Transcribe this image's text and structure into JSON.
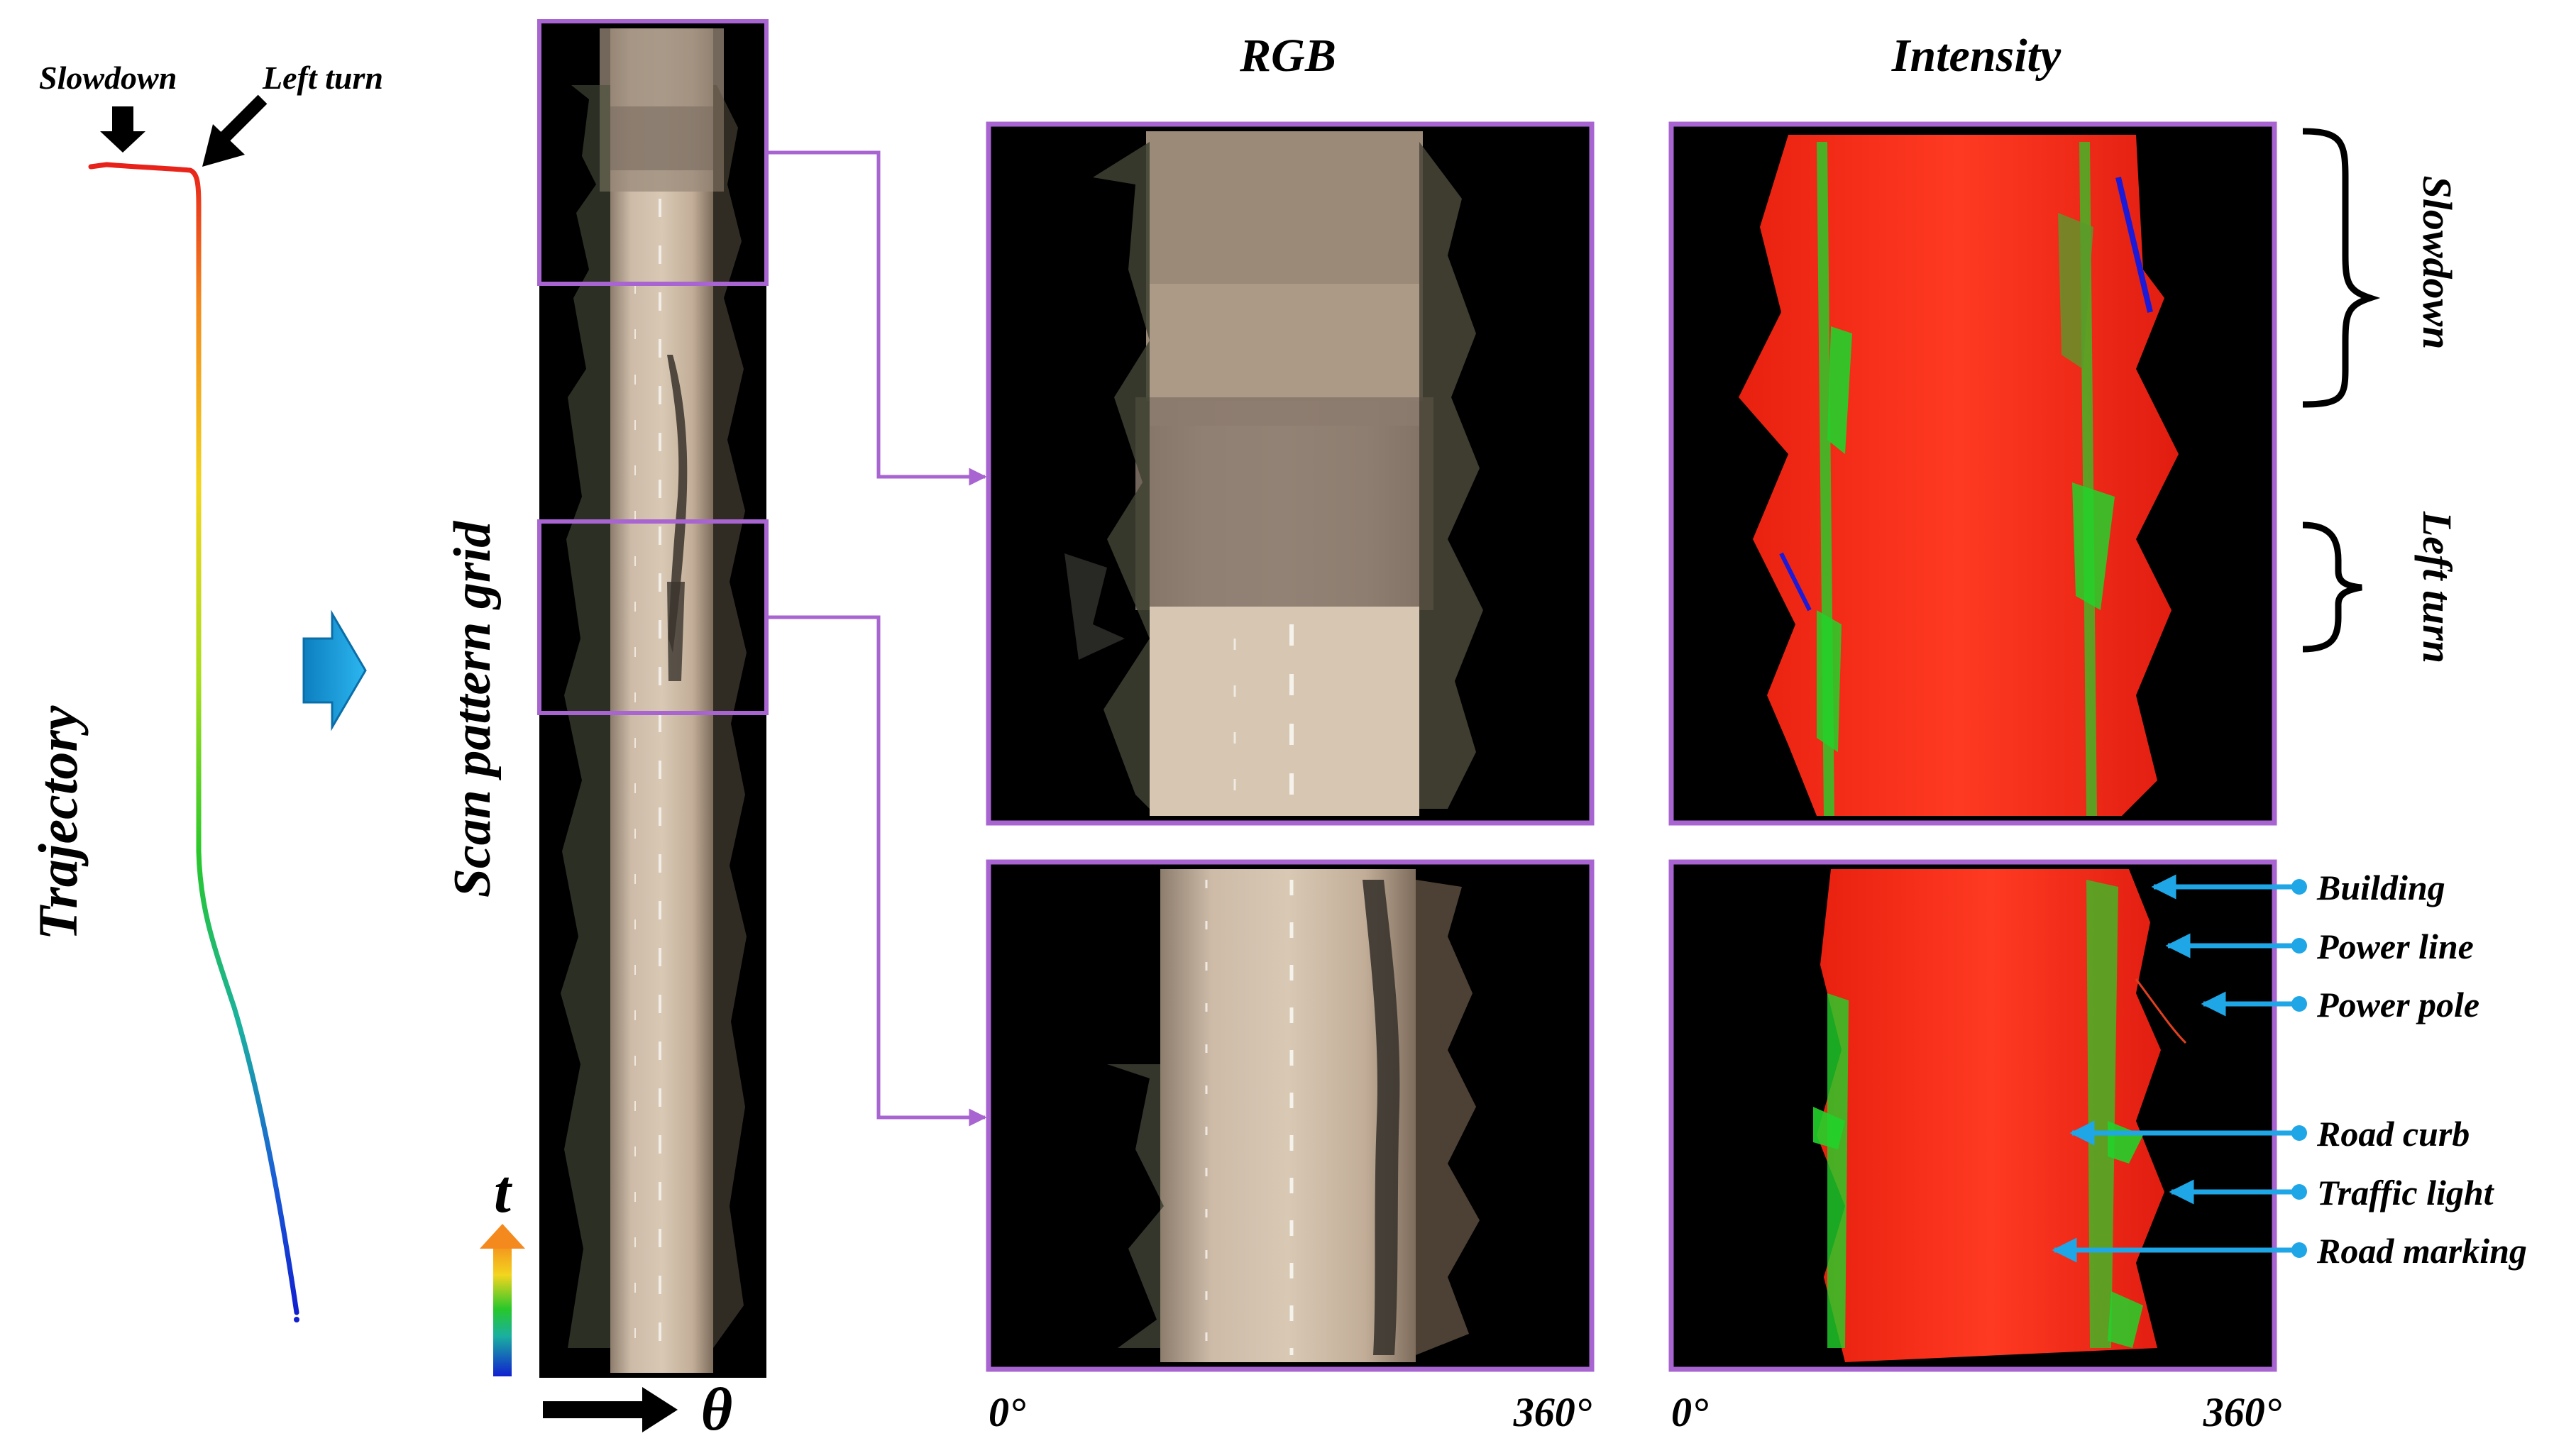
{
  "labels": {
    "trajectory": "Trajectory",
    "slowdown_marker": "Slowdown",
    "left_turn_marker": "Left turn",
    "scan_pattern_grid": "Scan pattern grid",
    "time_axis": "t",
    "theta_axis": "θ",
    "rgb_header": "RGB",
    "intensity_header": "Intensity",
    "slowdown_bracket": "Slowdown",
    "left_turn_bracket": "Left turn",
    "rgb_start": "0°",
    "rgb_end": "360°",
    "intensity_start": "0°",
    "intensity_end": "360°"
  },
  "annotations": [
    "Building",
    "Power line",
    "Power pole",
    "Road curb",
    "Traffic light",
    "Road marking"
  ],
  "colors": {
    "frame": "#a864d0",
    "annotation_arrow": "#1ea6e6",
    "rgb_road": "#b9a48f",
    "intensity_red": "#ff2a1a",
    "intensity_green": "#22d22a",
    "background_scene": "#000000"
  },
  "icons": {
    "process_arrow": "blue-right-arrow-icon",
    "time_colorbar": "rainbow-colorbar-icon"
  }
}
